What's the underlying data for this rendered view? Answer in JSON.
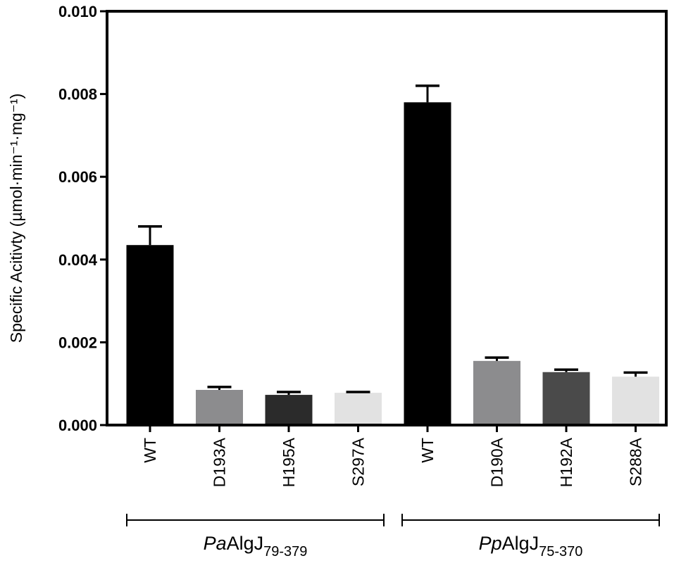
{
  "chart_data": {
    "type": "bar",
    "ylabel": "Specific Acitivty (µmol·min⁻¹·mg⁻¹)",
    "ylim": [
      0,
      0.01
    ],
    "yticks": [
      "0.000",
      "0.002",
      "0.004",
      "0.006",
      "0.008",
      "0.010"
    ],
    "categories": [
      "WT",
      "D193A",
      "H195A",
      "S297A",
      "WT",
      "D190A",
      "H192A",
      "S288A"
    ],
    "values": [
      0.00435,
      0.00085,
      0.00073,
      0.00078,
      0.0078,
      0.00155,
      0.00128,
      0.00117
    ],
    "errors": [
      0.00045,
      7e-05,
      7e-05,
      2e-05,
      0.0004,
      8e-05,
      6e-05,
      0.0001
    ],
    "colors": [
      "#000000",
      "#8c8c8e",
      "#2b2b2b",
      "#e2e2e2",
      "#000000",
      "#8c8c8e",
      "#4a4a4a",
      "#e2e2e2"
    ],
    "groups": [
      {
        "prefix": "Pa",
        "name": "AlgJ",
        "subscript": "79-379",
        "span": [
          0,
          3
        ]
      },
      {
        "prefix": "Pp",
        "name": "AlgJ",
        "subscript": "75-370",
        "span": [
          4,
          7
        ]
      }
    ],
    "grid": false
  }
}
